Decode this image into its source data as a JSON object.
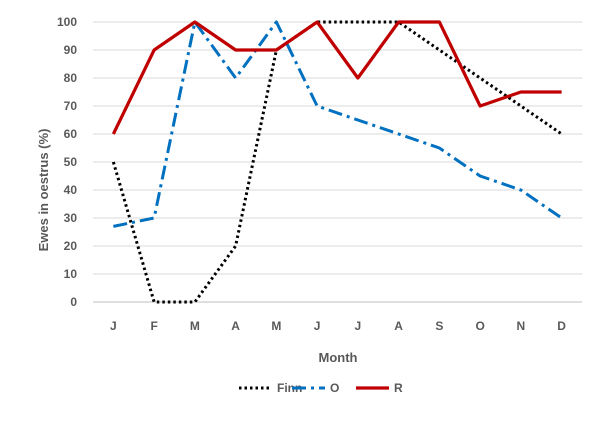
{
  "chart_data": {
    "type": "line",
    "xlabel": "Month",
    "ylabel": "Ewes in oestrus (%)",
    "ylim": [
      0,
      100
    ],
    "yticks": [
      0,
      10,
      20,
      30,
      40,
      50,
      60,
      70,
      80,
      90,
      100
    ],
    "categories": [
      "J",
      "F",
      "M",
      "A",
      "M",
      "J",
      "J",
      "A",
      "S",
      "O",
      "N",
      "D"
    ],
    "grid": "horizontal",
    "legend_position": "bottom",
    "series": [
      {
        "name": "Finn",
        "color": "#000000",
        "style": "dotted",
        "values": [
          50,
          0,
          0,
          20,
          90,
          100,
          100,
          100,
          90,
          80,
          70,
          60
        ]
      },
      {
        "name": "O",
        "color": "#0070C0",
        "style": "dash-dot",
        "values": [
          27,
          30,
          100,
          80,
          100,
          70,
          65,
          60,
          55,
          45,
          40,
          30
        ]
      },
      {
        "name": "R",
        "color": "#C00000",
        "style": "solid",
        "values": [
          60,
          90,
          100,
          90,
          90,
          100,
          80,
          100,
          100,
          70,
          75,
          75
        ]
      }
    ]
  }
}
